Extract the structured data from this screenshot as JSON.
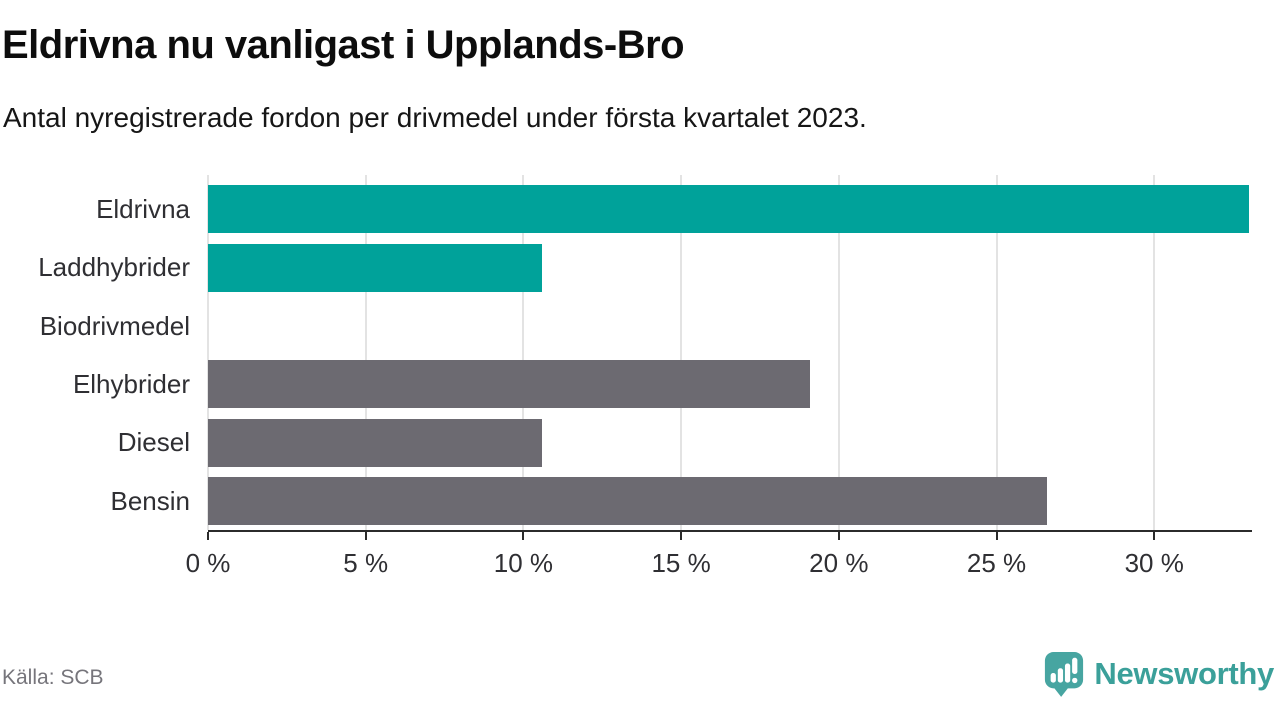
{
  "header": {
    "title": "Eldrivna nu vanligast i Upplands-Bro",
    "subtitle": "Antal nyregistrerade fordon per drivmedel under första kvartalet 2023."
  },
  "footer": {
    "source": "Källa: SCB",
    "logo_text": "Newsworthy"
  },
  "colors": {
    "highlight_teal": "#00a29a",
    "neutral_gray": "#6c6a71",
    "logo_teal": "#47a5a1",
    "logo_text_teal": "#3ba09a",
    "gridline": "#e3e3e3",
    "axis": "#2b2b2b"
  },
  "chart_data": {
    "type": "bar",
    "orientation": "horizontal",
    "title": "Eldrivna nu vanligast i Upplands-Bro",
    "subtitle": "Antal nyregistrerade fordon per drivmedel under första kvartalet 2023.",
    "source": "Källa: SCB",
    "categories": [
      "Eldrivna",
      "Laddhybrider",
      "Biodrivmedel",
      "Elhybrider",
      "Diesel",
      "Bensin"
    ],
    "values": [
      33.0,
      10.6,
      0,
      19.1,
      10.6,
      26.6
    ],
    "unit": "%",
    "bar_colors": [
      "#00a29a",
      "#00a29a",
      "#6c6a71",
      "#6c6a71",
      "#6c6a71",
      "#6c6a71"
    ],
    "xlabel": "",
    "ylabel": "",
    "xlim": [
      0,
      33.1
    ],
    "x_ticks": [
      0,
      5,
      10,
      15,
      20,
      25,
      30
    ],
    "x_tick_labels": [
      "0 %",
      "5 %",
      "10 %",
      "15 %",
      "20 %",
      "25 %",
      "30 %"
    ],
    "grid": "vertical",
    "legend": "none"
  }
}
